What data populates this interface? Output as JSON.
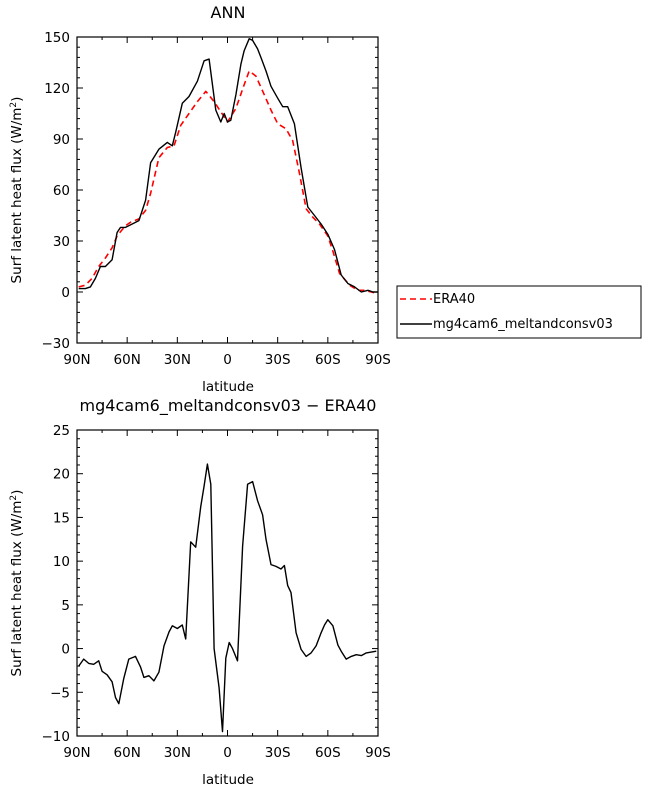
{
  "chart_data": [
    {
      "type": "line",
      "title": "ANN",
      "xlabel": "latitude",
      "ylabel": "Surf latent heat flux (W/m²)",
      "ylabel_main": "Surf latent heat flux (W/m",
      "ylabel_sup": "2",
      "ylabel_end": ")",
      "xlim": [
        90,
        -90
      ],
      "ylim": [
        -30,
        150
      ],
      "x_ticks": [
        90,
        60,
        30,
        0,
        -30,
        -60,
        -90
      ],
      "x_tick_labels": [
        "90N",
        "60N",
        "30N",
        "0",
        "30S",
        "60S",
        "90S"
      ],
      "y_ticks": [
        -30,
        0,
        30,
        60,
        90,
        120,
        150
      ],
      "y_tick_labels": [
        "−30",
        "0",
        "30",
        "60",
        "90",
        "120",
        "150"
      ],
      "grid": false,
      "legend": "right",
      "series": [
        {
          "name": "ERA40",
          "color": "#ff0000",
          "dash": "dashed",
          "x": [
            89,
            85,
            81,
            77,
            73,
            69,
            66,
            61,
            58,
            53,
            49,
            46,
            41,
            36,
            32,
            28,
            23,
            18,
            13,
            8,
            4,
            0,
            -5,
            -10,
            -13,
            -17,
            -22,
            -26,
            -30,
            -35,
            -39,
            -43,
            -47,
            -51,
            -55,
            -60,
            -63,
            -67,
            -73,
            -78,
            -82,
            -86,
            -90
          ],
          "y": [
            3,
            4,
            8,
            15,
            20,
            26,
            33,
            39,
            41,
            43,
            48,
            58,
            79,
            85,
            86,
            98,
            105,
            112,
            118,
            112,
            106,
            100,
            108,
            122,
            130,
            127,
            116,
            107,
            99,
            96,
            89,
            70,
            49,
            44,
            40,
            33,
            24,
            11,
            4,
            1,
            1,
            0,
            -1
          ]
        },
        {
          "name": "mg4cam6_meltandconsv03",
          "color": "#000000",
          "dash": "solid",
          "x": [
            89,
            85,
            82,
            79,
            76,
            73,
            69,
            66,
            64,
            61,
            57,
            53,
            49,
            46,
            41,
            36,
            33,
            31,
            27,
            23,
            18,
            14,
            11,
            7,
            4,
            2,
            0,
            -2,
            -5,
            -8,
            -10,
            -13,
            -15,
            -18,
            -20,
            -23,
            -26,
            -30,
            -33,
            -36,
            -40,
            -44,
            -48,
            -52,
            -56,
            -60,
            -64,
            -68,
            -72,
            -76,
            -80,
            -84,
            -87,
            -90
          ],
          "y": [
            2,
            2,
            3,
            8,
            15,
            15,
            19,
            35,
            38,
            38,
            40,
            42,
            54,
            76,
            84,
            88,
            86,
            94,
            111,
            115,
            124,
            136,
            137,
            107,
            100,
            105,
            100,
            101,
            116,
            134,
            142,
            149,
            148,
            143,
            138,
            130,
            121,
            114,
            109,
            109,
            99,
            73,
            50,
            45,
            40,
            34,
            25,
            10,
            5,
            3,
            0,
            1,
            0,
            0
          ]
        }
      ]
    },
    {
      "type": "line",
      "title": "mg4cam6_meltandconsv03 − ERA40",
      "xlabel": "latitude",
      "ylabel": "Surf latent heat flux (W/m²)",
      "ylabel_main": "Surf latent heat flux (W/m",
      "ylabel_sup": "2",
      "ylabel_end": ")",
      "xlim": [
        90,
        -90
      ],
      "ylim": [
        -10,
        25
      ],
      "x_ticks": [
        90,
        60,
        30,
        0,
        -30,
        -60,
        -90
      ],
      "x_tick_labels": [
        "90N",
        "60N",
        "30N",
        "0",
        "30S",
        "60S",
        "90S"
      ],
      "y_ticks": [
        -10,
        -5,
        0,
        5,
        10,
        15,
        20,
        25
      ],
      "y_tick_labels": [
        "−10",
        "−5",
        "0",
        "5",
        "10",
        "15",
        "20",
        "25"
      ],
      "grid": false,
      "legend": "none",
      "series": [
        {
          "color": "#000000",
          "dash": "solid",
          "x": [
            89,
            86,
            83,
            80,
            77,
            75,
            72,
            69,
            67,
            65,
            62,
            59,
            55,
            52,
            50,
            47,
            44,
            41,
            38,
            35,
            33,
            30,
            27,
            25,
            22,
            19,
            16,
            14,
            12,
            10,
            8,
            5,
            3,
            1,
            -1,
            -3,
            -6,
            -9,
            -12,
            -15,
            -18,
            -21,
            -23,
            -26,
            -29,
            -32,
            -34,
            -36,
            -38,
            -41,
            -44,
            -47,
            -50,
            -53,
            -56,
            -58,
            -60,
            -63,
            -66,
            -68,
            -71,
            -74,
            -77,
            -80,
            -83,
            -86,
            -89
          ],
          "y": [
            -2,
            -1.2,
            -1.7,
            -1.8,
            -1.4,
            -2.6,
            -3,
            -3.8,
            -5.6,
            -6.3,
            -3.4,
            -1.2,
            -0.9,
            -2.1,
            -3.3,
            -3.1,
            -3.7,
            -2.7,
            0.3,
            1.9,
            2.6,
            2.3,
            2.7,
            1.1,
            12.2,
            11.6,
            16.2,
            18.6,
            21.1,
            18.8,
            0,
            -4.5,
            -9.5,
            -1.1,
            0.7,
            0,
            -1.4,
            11.7,
            18.8,
            19.1,
            16.9,
            15.3,
            12.5,
            9.6,
            9.4,
            9.1,
            9.5,
            7.2,
            6.4,
            1.8,
            -0.1,
            -0.9,
            -0.5,
            0.3,
            1.8,
            2.7,
            3.3,
            2.6,
            0.4,
            -0.3,
            -1.2,
            -0.9,
            -0.7,
            -0.8,
            -0.5,
            -0.4,
            -0.3
          ]
        }
      ]
    }
  ]
}
